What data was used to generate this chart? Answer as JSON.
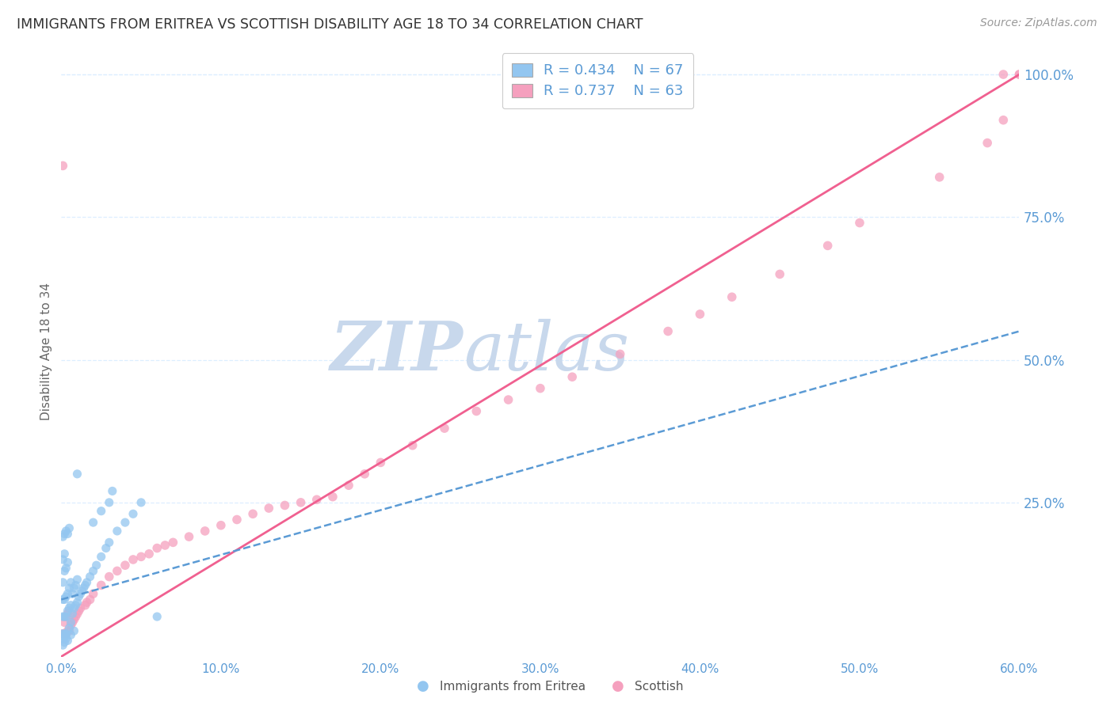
{
  "title": "IMMIGRANTS FROM ERITREA VS SCOTTISH DISABILITY AGE 18 TO 34 CORRELATION CHART",
  "source": "Source: ZipAtlas.com",
  "ylabel": "Disability Age 18 to 34",
  "xlim": [
    0.0,
    0.6
  ],
  "ylim": [
    -0.02,
    1.05
  ],
  "xtick_labels": [
    "0.0%",
    "10.0%",
    "20.0%",
    "30.0%",
    "40.0%",
    "50.0%",
    "60.0%"
  ],
  "xtick_vals": [
    0.0,
    0.1,
    0.2,
    0.3,
    0.4,
    0.5,
    0.6
  ],
  "ytick_labels": [
    "100.0%",
    "75.0%",
    "50.0%",
    "25.0%"
  ],
  "ytick_vals": [
    1.0,
    0.75,
    0.5,
    0.25
  ],
  "legend_R1": "R = 0.434",
  "legend_N1": "N = 67",
  "legend_R2": "R = 0.737",
  "legend_N2": "N = 63",
  "blue_color": "#93C6F0",
  "pink_color": "#F5A0BE",
  "axis_label_color": "#5B9BD5",
  "grid_color": "#DDEEFF",
  "watermark_color": "#C8D8EC",
  "blue_trend_color": "#5B9BD5",
  "pink_trend_color": "#F06090",
  "scatter_blue_x": [
    0.001,
    0.001,
    0.001,
    0.001,
    0.001,
    0.002,
    0.002,
    0.002,
    0.002,
    0.002,
    0.003,
    0.003,
    0.003,
    0.003,
    0.004,
    0.004,
    0.004,
    0.005,
    0.005,
    0.005,
    0.006,
    0.006,
    0.006,
    0.007,
    0.007,
    0.008,
    0.008,
    0.009,
    0.009,
    0.01,
    0.01,
    0.011,
    0.012,
    0.013,
    0.014,
    0.015,
    0.016,
    0.018,
    0.02,
    0.022,
    0.025,
    0.028,
    0.03,
    0.035,
    0.04,
    0.045,
    0.05,
    0.001,
    0.002,
    0.003,
    0.001,
    0.002,
    0.003,
    0.004,
    0.005,
    0.02,
    0.025,
    0.03,
    0.032,
    0.001,
    0.002,
    0.004,
    0.003,
    0.006,
    0.008,
    0.06,
    0.01
  ],
  "scatter_blue_y": [
    0.02,
    0.05,
    0.08,
    0.11,
    0.15,
    0.02,
    0.05,
    0.08,
    0.13,
    0.16,
    0.02,
    0.05,
    0.085,
    0.135,
    0.06,
    0.09,
    0.145,
    0.03,
    0.065,
    0.1,
    0.04,
    0.07,
    0.11,
    0.055,
    0.09,
    0.065,
    0.1,
    0.07,
    0.105,
    0.075,
    0.115,
    0.085,
    0.09,
    0.095,
    0.1,
    0.105,
    0.11,
    0.12,
    0.13,
    0.14,
    0.155,
    0.17,
    0.18,
    0.2,
    0.215,
    0.23,
    0.25,
    0.01,
    0.015,
    0.018,
    0.19,
    0.195,
    0.2,
    0.195,
    0.205,
    0.215,
    0.235,
    0.25,
    0.27,
    0.0,
    0.005,
    0.008,
    0.012,
    0.018,
    0.025,
    0.05,
    0.3
  ],
  "scatter_pink_x": [
    0.001,
    0.002,
    0.002,
    0.003,
    0.003,
    0.004,
    0.004,
    0.005,
    0.005,
    0.006,
    0.007,
    0.008,
    0.009,
    0.01,
    0.011,
    0.012,
    0.015,
    0.016,
    0.018,
    0.02,
    0.025,
    0.03,
    0.035,
    0.04,
    0.045,
    0.05,
    0.055,
    0.06,
    0.065,
    0.07,
    0.08,
    0.09,
    0.1,
    0.11,
    0.12,
    0.13,
    0.14,
    0.15,
    0.16,
    0.17,
    0.18,
    0.19,
    0.2,
    0.22,
    0.24,
    0.26,
    0.28,
    0.3,
    0.32,
    0.35,
    0.38,
    0.4,
    0.42,
    0.45,
    0.48,
    0.5,
    0.55,
    0.58,
    0.59,
    0.6,
    0.59,
    0.6,
    0.001
  ],
  "scatter_pink_y": [
    0.02,
    0.02,
    0.04,
    0.02,
    0.05,
    0.025,
    0.055,
    0.025,
    0.06,
    0.035,
    0.04,
    0.045,
    0.05,
    0.055,
    0.06,
    0.065,
    0.07,
    0.075,
    0.08,
    0.09,
    0.105,
    0.12,
    0.13,
    0.14,
    0.15,
    0.155,
    0.16,
    0.17,
    0.175,
    0.18,
    0.19,
    0.2,
    0.21,
    0.22,
    0.23,
    0.24,
    0.245,
    0.25,
    0.255,
    0.26,
    0.28,
    0.3,
    0.32,
    0.35,
    0.38,
    0.41,
    0.43,
    0.45,
    0.47,
    0.51,
    0.55,
    0.58,
    0.61,
    0.65,
    0.7,
    0.74,
    0.82,
    0.88,
    0.92,
    1.0,
    1.0,
    1.0,
    0.84
  ],
  "pink_trend_x0": 0.0,
  "pink_trend_y0": -0.02,
  "pink_trend_x1": 0.6,
  "pink_trend_y1": 1.0,
  "blue_trend_x0": 0.0,
  "blue_trend_y0": 0.08,
  "blue_trend_x1": 0.6,
  "blue_trend_y1": 0.55
}
